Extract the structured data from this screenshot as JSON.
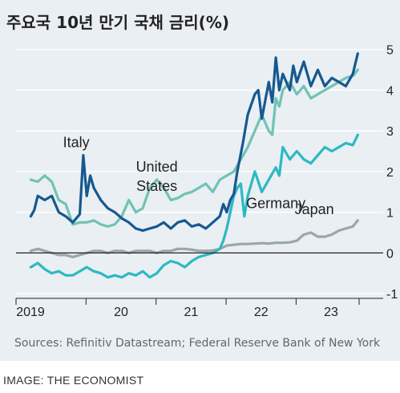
{
  "chart_data": {
    "type": "line",
    "title": "주요국 10년 만기 국채 금리(%)",
    "xlabel": "",
    "ylabel": "",
    "xlim": [
      2019.0,
      2023.9
    ],
    "ylim": [
      -1,
      5
    ],
    "x_ticks": [
      {
        "label": "2019",
        "value": 2019.0
      },
      {
        "label": "20",
        "value": 2020.0
      },
      {
        "label": "21",
        "value": 2021.0
      },
      {
        "label": "22",
        "value": 2022.0
      },
      {
        "label": "23",
        "value": 2023.0
      }
    ],
    "y_ticks": [
      {
        "label": "5",
        "value": 5
      },
      {
        "label": "4",
        "value": 4
      },
      {
        "label": "3",
        "value": 3
      },
      {
        "label": "2",
        "value": 2
      },
      {
        "label": "1",
        "value": 1
      },
      {
        "label": "0",
        "value": 0
      },
      {
        "label": "-1",
        "value": -1
      }
    ],
    "grid": true,
    "series": [
      {
        "name": "Italy",
        "color": "#17588f",
        "label_at": [
          2019.7,
          2.6
        ],
        "points": [
          [
            2019.05,
            0.9
          ],
          [
            2019.1,
            1.05
          ],
          [
            2019.15,
            1.4
          ],
          [
            2019.25,
            1.3
          ],
          [
            2019.35,
            1.4
          ],
          [
            2019.45,
            1.0
          ],
          [
            2019.55,
            0.9
          ],
          [
            2019.65,
            0.75
          ],
          [
            2019.75,
            0.95
          ],
          [
            2019.8,
            2.4
          ],
          [
            2019.85,
            1.4
          ],
          [
            2019.9,
            1.9
          ],
          [
            2019.95,
            1.6
          ],
          [
            2020.05,
            1.3
          ],
          [
            2020.15,
            1.1
          ],
          [
            2020.25,
            1.0
          ],
          [
            2020.35,
            0.85
          ],
          [
            2020.45,
            0.75
          ],
          [
            2020.55,
            0.6
          ],
          [
            2020.65,
            0.55
          ],
          [
            2020.75,
            0.6
          ],
          [
            2020.85,
            0.65
          ],
          [
            2020.95,
            0.75
          ],
          [
            2021.05,
            0.6
          ],
          [
            2021.15,
            0.75
          ],
          [
            2021.25,
            0.8
          ],
          [
            2021.35,
            0.65
          ],
          [
            2021.45,
            0.7
          ],
          [
            2021.55,
            0.6
          ],
          [
            2021.65,
            0.75
          ],
          [
            2021.75,
            0.9
          ],
          [
            2021.8,
            1.2
          ],
          [
            2021.85,
            1.0
          ],
          [
            2021.9,
            1.3
          ],
          [
            2021.95,
            1.45
          ],
          [
            2022.0,
            2.0
          ],
          [
            2022.08,
            2.7
          ],
          [
            2022.15,
            3.4
          ],
          [
            2022.25,
            3.9
          ],
          [
            2022.3,
            4.0
          ],
          [
            2022.35,
            3.3
          ],
          [
            2022.45,
            4.2
          ],
          [
            2022.5,
            3.7
          ],
          [
            2022.55,
            4.8
          ],
          [
            2022.6,
            4.0
          ],
          [
            2022.65,
            4.4
          ],
          [
            2022.75,
            4.0
          ],
          [
            2022.8,
            4.6
          ],
          [
            2022.85,
            4.2
          ],
          [
            2022.95,
            4.7
          ],
          [
            2023.05,
            4.1
          ],
          [
            2023.15,
            4.5
          ],
          [
            2023.25,
            4.1
          ],
          [
            2023.35,
            4.3
          ],
          [
            2023.45,
            4.2
          ],
          [
            2023.55,
            4.1
          ],
          [
            2023.65,
            4.4
          ],
          [
            2023.72,
            4.9
          ]
        ]
      },
      {
        "name": "United States",
        "color": "#72c2b6",
        "label_at": [
          2020.85,
          2.0
        ],
        "points": [
          [
            2019.05,
            1.8
          ],
          [
            2019.15,
            1.75
          ],
          [
            2019.25,
            1.9
          ],
          [
            2019.35,
            1.75
          ],
          [
            2019.45,
            1.3
          ],
          [
            2019.55,
            1.2
          ],
          [
            2019.65,
            0.7
          ],
          [
            2019.75,
            0.75
          ],
          [
            2019.85,
            0.75
          ],
          [
            2019.95,
            0.8
          ],
          [
            2020.05,
            0.7
          ],
          [
            2020.15,
            0.65
          ],
          [
            2020.25,
            0.7
          ],
          [
            2020.35,
            0.9
          ],
          [
            2020.45,
            1.3
          ],
          [
            2020.55,
            1.0
          ],
          [
            2020.65,
            1.1
          ],
          [
            2020.75,
            1.6
          ],
          [
            2020.85,
            1.8
          ],
          [
            2020.95,
            1.6
          ],
          [
            2021.05,
            1.3
          ],
          [
            2021.15,
            1.35
          ],
          [
            2021.25,
            1.45
          ],
          [
            2021.35,
            1.5
          ],
          [
            2021.45,
            1.6
          ],
          [
            2021.55,
            1.7
          ],
          [
            2021.65,
            1.5
          ],
          [
            2021.75,
            1.8
          ],
          [
            2021.85,
            1.9
          ],
          [
            2021.95,
            2.0
          ],
          [
            2022.05,
            2.3
          ],
          [
            2022.15,
            2.6
          ],
          [
            2022.25,
            3.0
          ],
          [
            2022.35,
            3.4
          ],
          [
            2022.45,
            3.0
          ],
          [
            2022.5,
            2.9
          ],
          [
            2022.55,
            3.8
          ],
          [
            2022.6,
            3.6
          ],
          [
            2022.65,
            4.0
          ],
          [
            2022.75,
            4.2
          ],
          [
            2022.85,
            3.9
          ],
          [
            2022.95,
            4.1
          ],
          [
            2023.05,
            3.8
          ],
          [
            2023.15,
            3.9
          ],
          [
            2023.25,
            4.0
          ],
          [
            2023.35,
            4.1
          ],
          [
            2023.45,
            4.2
          ],
          [
            2023.55,
            4.3
          ],
          [
            2023.65,
            4.35
          ],
          [
            2023.72,
            4.5
          ]
        ]
      },
      {
        "name": "Germany",
        "color": "#2db8c4",
        "label_at": [
          2022.55,
          1.1
        ],
        "points": [
          [
            2019.05,
            -0.35
          ],
          [
            2019.15,
            -0.25
          ],
          [
            2019.25,
            -0.4
          ],
          [
            2019.35,
            -0.5
          ],
          [
            2019.45,
            -0.45
          ],
          [
            2019.55,
            -0.55
          ],
          [
            2019.65,
            -0.55
          ],
          [
            2019.75,
            -0.45
          ],
          [
            2019.85,
            -0.35
          ],
          [
            2019.95,
            -0.45
          ],
          [
            2020.05,
            -0.5
          ],
          [
            2020.15,
            -0.6
          ],
          [
            2020.25,
            -0.55
          ],
          [
            2020.35,
            -0.6
          ],
          [
            2020.45,
            -0.5
          ],
          [
            2020.55,
            -0.55
          ],
          [
            2020.65,
            -0.45
          ],
          [
            2020.75,
            -0.6
          ],
          [
            2020.85,
            -0.5
          ],
          [
            2020.95,
            -0.3
          ],
          [
            2021.05,
            -0.2
          ],
          [
            2021.15,
            -0.25
          ],
          [
            2021.25,
            -0.35
          ],
          [
            2021.35,
            -0.2
          ],
          [
            2021.45,
            -0.1
          ],
          [
            2021.55,
            -0.05
          ],
          [
            2021.65,
            0.0
          ],
          [
            2021.75,
            0.1
          ],
          [
            2021.8,
            0.3
          ],
          [
            2021.85,
            0.6
          ],
          [
            2021.9,
            1.0
          ],
          [
            2021.95,
            1.4
          ],
          [
            2022.0,
            1.6
          ],
          [
            2022.05,
            1.7
          ],
          [
            2022.1,
            0.9
          ],
          [
            2022.15,
            1.4
          ],
          [
            2022.25,
            2.0
          ],
          [
            2022.35,
            1.5
          ],
          [
            2022.45,
            1.8
          ],
          [
            2022.55,
            2.1
          ],
          [
            2022.6,
            1.9
          ],
          [
            2022.65,
            2.6
          ],
          [
            2022.75,
            2.3
          ],
          [
            2022.85,
            2.5
          ],
          [
            2022.95,
            2.3
          ],
          [
            2023.05,
            2.2
          ],
          [
            2023.15,
            2.4
          ],
          [
            2023.25,
            2.6
          ],
          [
            2023.35,
            2.5
          ],
          [
            2023.45,
            2.6
          ],
          [
            2023.55,
            2.7
          ],
          [
            2023.65,
            2.65
          ],
          [
            2023.72,
            2.9
          ]
        ]
      },
      {
        "name": "Japan",
        "color": "#9aa6ab",
        "label_at": [
          2023.1,
          0.95
        ],
        "points": [
          [
            2019.05,
            0.05
          ],
          [
            2019.15,
            0.1
          ],
          [
            2019.25,
            0.05
          ],
          [
            2019.35,
            0.0
          ],
          [
            2019.45,
            -0.05
          ],
          [
            2019.55,
            -0.05
          ],
          [
            2019.65,
            -0.1
          ],
          [
            2019.75,
            -0.05
          ],
          [
            2019.85,
            0.0
          ],
          [
            2019.95,
            0.05
          ],
          [
            2020.05,
            0.05
          ],
          [
            2020.15,
            0.0
          ],
          [
            2020.25,
            0.05
          ],
          [
            2020.35,
            0.05
          ],
          [
            2020.45,
            0.0
          ],
          [
            2020.55,
            0.05
          ],
          [
            2020.65,
            0.05
          ],
          [
            2020.75,
            0.05
          ],
          [
            2020.85,
            0.0
          ],
          [
            2020.95,
            0.05
          ],
          [
            2021.05,
            0.05
          ],
          [
            2021.15,
            0.1
          ],
          [
            2021.25,
            0.1
          ],
          [
            2021.35,
            0.08
          ],
          [
            2021.45,
            0.05
          ],
          [
            2021.55,
            0.05
          ],
          [
            2021.65,
            0.06
          ],
          [
            2021.75,
            0.1
          ],
          [
            2021.85,
            0.18
          ],
          [
            2021.95,
            0.2
          ],
          [
            2022.05,
            0.22
          ],
          [
            2022.15,
            0.22
          ],
          [
            2022.25,
            0.23
          ],
          [
            2022.35,
            0.24
          ],
          [
            2022.45,
            0.23
          ],
          [
            2022.55,
            0.25
          ],
          [
            2022.65,
            0.25
          ],
          [
            2022.75,
            0.26
          ],
          [
            2022.85,
            0.3
          ],
          [
            2022.95,
            0.45
          ],
          [
            2023.05,
            0.5
          ],
          [
            2023.15,
            0.4
          ],
          [
            2023.25,
            0.4
          ],
          [
            2023.35,
            0.45
          ],
          [
            2023.45,
            0.55
          ],
          [
            2023.55,
            0.6
          ],
          [
            2023.65,
            0.65
          ],
          [
            2023.72,
            0.8
          ]
        ]
      }
    ],
    "legend": "inline labels"
  },
  "source_note": "Sources: Refinitiv Datastream; Federal Reserve Bank of New York",
  "image_credit": "IMAGE: THE ECONOMIST",
  "colors": {
    "panel_background": "#e9eff2",
    "grid": "#ffffff",
    "axis": "#222222"
  }
}
